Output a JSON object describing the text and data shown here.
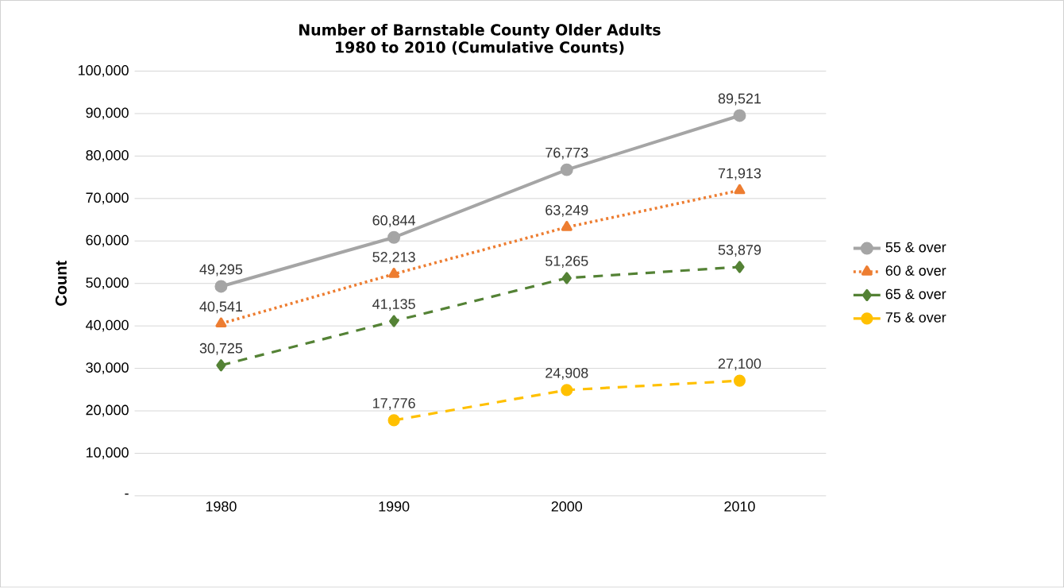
{
  "chart_data": {
    "type": "line",
    "title": "Number of Barnstable County Older Adults",
    "subtitle": "1980 to 2010 (Cumulative Counts)",
    "ylabel": "Count",
    "categories": [
      "1980",
      "1990",
      "2000",
      "2010"
    ],
    "series": [
      {
        "name": "55 & over",
        "color": "#a5a5a5",
        "marker": "circle",
        "line_style": "solid",
        "values": [
          49295,
          60844,
          76773,
          89521
        ],
        "value_labels": [
          "49,295",
          "60,844",
          "76,773",
          "89,521"
        ]
      },
      {
        "name": "60 & over",
        "color": "#ed7d31",
        "marker": "triangle",
        "line_style": "dotted",
        "values": [
          40541,
          52213,
          63249,
          71913
        ],
        "value_labels": [
          "40,541",
          "52,213",
          "63,249",
          "71,913"
        ]
      },
      {
        "name": "65 & over",
        "color": "#548235",
        "marker": "diamond",
        "line_style": "dashed",
        "values": [
          30725,
          41135,
          51265,
          53879
        ],
        "value_labels": [
          "30,725",
          "41,135",
          "51,265",
          "53,879"
        ]
      },
      {
        "name": "75 & over",
        "color": "#ffc000",
        "marker": "circle",
        "line_style": "dashed",
        "values": [
          null,
          17776,
          24908,
          27100
        ],
        "value_labels": [
          null,
          "17,776",
          "24,908",
          "27,100"
        ]
      }
    ],
    "ylim": [
      0,
      100000
    ],
    "yticks": [
      {
        "value": 0,
        "label": "-"
      },
      {
        "value": 10000,
        "label": "10,000"
      },
      {
        "value": 20000,
        "label": "20,000"
      },
      {
        "value": 30000,
        "label": "30,000"
      },
      {
        "value": 40000,
        "label": "40,000"
      },
      {
        "value": 50000,
        "label": "50,000"
      },
      {
        "value": 60000,
        "label": "60,000"
      },
      {
        "value": 70000,
        "label": "70,000"
      },
      {
        "value": 80000,
        "label": "80,000"
      },
      {
        "value": 90000,
        "label": "90,000"
      },
      {
        "value": 100000,
        "label": "100,000"
      }
    ],
    "grid": "y",
    "legend": "right"
  }
}
